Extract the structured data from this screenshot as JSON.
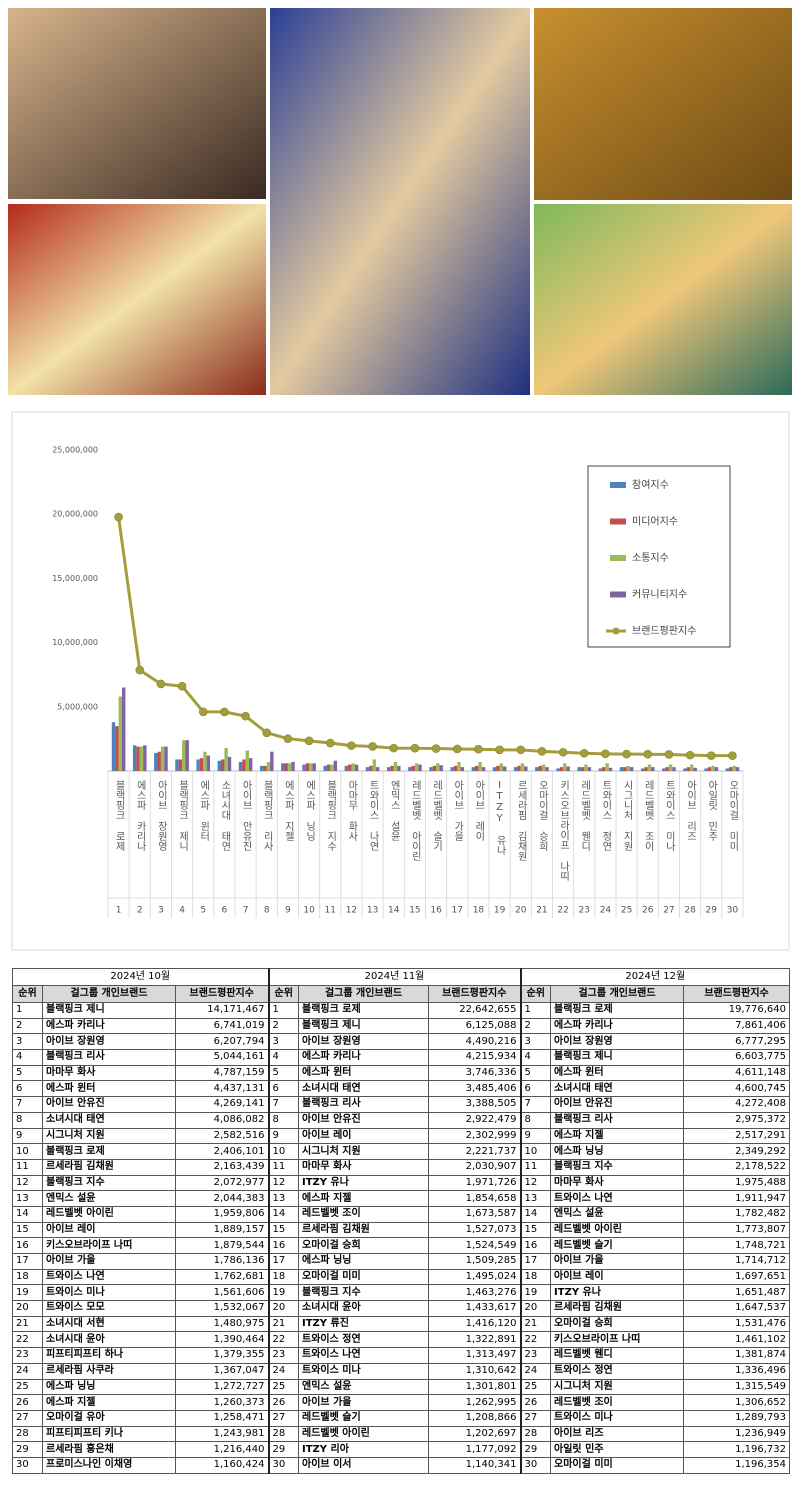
{
  "chart_data": {
    "type": "combo",
    "categories": [
      "블랙핑크 로제",
      "에스파 카리나",
      "아이브 장원영",
      "블랙핑크 제니",
      "에스파 윈터",
      "소녀시대 태연",
      "아이브 안유진",
      "블랙핑크 리사",
      "에스파 지젤",
      "에스파 닝닝",
      "블랙핑크 지수",
      "마마무 화사",
      "트와이스 나연",
      "엔믹스 설윤",
      "레드벨벳 아이린",
      "레드벨벳 슬기",
      "아이브 가을",
      "아이브 레이",
      "ITZY 유나",
      "르세라핌 김채원",
      "오마이걸 승희",
      "키스오브라이프 나띠",
      "레드벨벳 웬디",
      "트와이스 정연",
      "시그니처 지원",
      "레드벨벳 조이",
      "트와이스 미나",
      "아이브 리즈",
      "아일릿 민주",
      "오마이걸 미미"
    ],
    "ranks": [
      1,
      2,
      3,
      4,
      5,
      6,
      7,
      8,
      9,
      10,
      11,
      12,
      13,
      14,
      15,
      16,
      17,
      18,
      19,
      20,
      21,
      22,
      23,
      24,
      25,
      26,
      27,
      28,
      29,
      30
    ],
    "series": [
      {
        "name": "참여지수",
        "type": "bar",
        "color": "#4f81bd",
        "values": [
          3800000,
          2000000,
          1400000,
          900000,
          900000,
          800000,
          700000,
          400000,
          600000,
          500000,
          400000,
          400000,
          300000,
          300000,
          300000,
          300000,
          300000,
          300000,
          300000,
          300000,
          300000,
          200000,
          300000,
          200000,
          300000,
          200000,
          200000,
          200000,
          200000,
          200000
        ]
      },
      {
        "name": "미디어지수",
        "type": "bar",
        "color": "#c0504d",
        "values": [
          3500000,
          1900000,
          1500000,
          900000,
          1000000,
          900000,
          900000,
          400000,
          600000,
          600000,
          500000,
          500000,
          400000,
          400000,
          400000,
          400000,
          400000,
          400000,
          400000,
          400000,
          400000,
          300000,
          300000,
          300000,
          300000,
          300000,
          300000,
          300000,
          300000,
          300000
        ]
      },
      {
        "name": "소통지수",
        "type": "bar",
        "color": "#9bbb59",
        "values": [
          5800000,
          1900000,
          1900000,
          2400000,
          1500000,
          1800000,
          1600000,
          700000,
          600000,
          600000,
          500000,
          600000,
          900000,
          700000,
          600000,
          600000,
          700000,
          700000,
          600000,
          600000,
          500000,
          600000,
          500000,
          600000,
          400000,
          500000,
          500000,
          500000,
          400000,
          400000
        ]
      },
      {
        "name": "커뮤니티지수",
        "type": "bar",
        "color": "#8064a2",
        "values": [
          6500000,
          2000000,
          1900000,
          2400000,
          1200000,
          1100000,
          1000000,
          1500000,
          700000,
          600000,
          800000,
          500000,
          300000,
          400000,
          500000,
          450000,
          300000,
          300000,
          350000,
          350000,
          300000,
          350000,
          300000,
          250000,
          300000,
          300000,
          300000,
          250000,
          300000,
          300000
        ]
      },
      {
        "name": "브랜드평판지수",
        "type": "line",
        "color": "#a59d3c",
        "values": [
          19776640,
          7861406,
          6777295,
          6603775,
          4611148,
          4600745,
          4272408,
          2975372,
          2517291,
          2349292,
          2178522,
          1975488,
          1911947,
          1782482,
          1773807,
          1748721,
          1714712,
          1697651,
          1651487,
          1647537,
          1531476,
          1461102,
          1381874,
          1336496,
          1315549,
          1306652,
          1289793,
          1236949,
          1196732,
          1196354
        ]
      }
    ],
    "ylim": [
      0,
      25000000
    ],
    "yticks": [
      {
        "value": 5000000,
        "label": "5,000,000"
      },
      {
        "value": 10000000,
        "label": "10,000,000"
      },
      {
        "value": 15000000,
        "label": "15,000,000"
      },
      {
        "value": 20000000,
        "label": "20,000,000"
      },
      {
        "value": 25000000,
        "label": "25,000,000"
      }
    ],
    "grid": false,
    "legend": "upper-right"
  },
  "table": {
    "columns": [
      "순위",
      "걸그룹 개인브랜드",
      "브랜드평판지수"
    ],
    "months": [
      {
        "title": "2024년 10월",
        "rows": [
          [
            1,
            "블랙핑크 제니",
            "14,171,467"
          ],
          [
            2,
            "에스파 카리나",
            "6,741,019"
          ],
          [
            3,
            "아이브 장원영",
            "6,207,794"
          ],
          [
            4,
            "블랙핑크 리사",
            "5,044,161"
          ],
          [
            5,
            "마마무 화사",
            "4,787,159"
          ],
          [
            6,
            "에스파 윈터",
            "4,437,131"
          ],
          [
            7,
            "아이브 안유진",
            "4,269,141"
          ],
          [
            8,
            "소녀시대 태연",
            "4,086,082"
          ],
          [
            9,
            "시그니처 지원",
            "2,582,516"
          ],
          [
            10,
            "블랙핑크 로제",
            "2,406,101"
          ],
          [
            11,
            "르세라핌 김채원",
            "2,163,439"
          ],
          [
            12,
            "블랙핑크 지수",
            "2,072,977"
          ],
          [
            13,
            "엔믹스 설윤",
            "2,044,383"
          ],
          [
            14,
            "레드벨벳 아이린",
            "1,959,806"
          ],
          [
            15,
            "아이브 레이",
            "1,889,157"
          ],
          [
            16,
            "키스오브라이프 나띠",
            "1,879,544"
          ],
          [
            17,
            "아이브 가을",
            "1,786,136"
          ],
          [
            18,
            "트와이스 나연",
            "1,762,681"
          ],
          [
            19,
            "트와이스 미나",
            "1,561,606"
          ],
          [
            20,
            "트와이스 모모",
            "1,532,067"
          ],
          [
            21,
            "소녀시대 서현",
            "1,480,975"
          ],
          [
            22,
            "소녀시대 윤아",
            "1,390,464"
          ],
          [
            23,
            "피프티피프티 하나",
            "1,379,355"
          ],
          [
            24,
            "르세라핌 사쿠라",
            "1,367,047"
          ],
          [
            25,
            "에스파 닝닝",
            "1,272,727"
          ],
          [
            26,
            "에스파 지젤",
            "1,260,373"
          ],
          [
            27,
            "오마이걸 유아",
            "1,258,471"
          ],
          [
            28,
            "피프티피프티 키나",
            "1,243,981"
          ],
          [
            29,
            "르세라핌 홍은채",
            "1,216,440"
          ],
          [
            30,
            "프로미스나인 이채영",
            "1,160,424"
          ]
        ]
      },
      {
        "title": "2024년 11월",
        "rows": [
          [
            1,
            "블랙핑크 로제",
            "22,642,655"
          ],
          [
            2,
            "블랙핑크 제니",
            "6,125,088"
          ],
          [
            3,
            "아이브 장원영",
            "4,490,216"
          ],
          [
            4,
            "에스파 카리나",
            "4,215,934"
          ],
          [
            5,
            "에스파 윈터",
            "3,746,336"
          ],
          [
            6,
            "소녀시대 태연",
            "3,485,406"
          ],
          [
            7,
            "블랙핑크 리사",
            "3,388,505"
          ],
          [
            8,
            "아이브 안유진",
            "2,922,479"
          ],
          [
            9,
            "아이브 레이",
            "2,302,999"
          ],
          [
            10,
            "시그니처 지원",
            "2,221,737"
          ],
          [
            11,
            "마마무 화사",
            "2,030,907"
          ],
          [
            12,
            "ITZY 유나",
            "1,971,726"
          ],
          [
            13,
            "에스파 지젤",
            "1,854,658"
          ],
          [
            14,
            "레드벨벳 조이",
            "1,673,587"
          ],
          [
            15,
            "르세라핌 김채원",
            "1,527,073"
          ],
          [
            16,
            "오마이걸 승희",
            "1,524,549"
          ],
          [
            17,
            "에스파 닝닝",
            "1,509,285"
          ],
          [
            18,
            "오마이걸 미미",
            "1,495,024"
          ],
          [
            19,
            "블랙핑크 지수",
            "1,463,276"
          ],
          [
            20,
            "소녀시대 윤아",
            "1,433,617"
          ],
          [
            21,
            "ITZY 류진",
            "1,416,120"
          ],
          [
            22,
            "트와이스 정연",
            "1,322,891"
          ],
          [
            23,
            "트와이스 나연",
            "1,313,497"
          ],
          [
            24,
            "트와이스 미나",
            "1,310,642"
          ],
          [
            25,
            "엔믹스 설윤",
            "1,301,801"
          ],
          [
            26,
            "아이브 가을",
            "1,262,995"
          ],
          [
            27,
            "레드벨벳 슬기",
            "1,208,866"
          ],
          [
            28,
            "레드벨벳 아이린",
            "1,202,697"
          ],
          [
            29,
            "ITZY 리아",
            "1,177,092"
          ],
          [
            30,
            "아이브 이서",
            "1,140,341"
          ]
        ]
      },
      {
        "title": "2024년 12월",
        "rows": [
          [
            1,
            "블랙핑크 로제",
            "19,776,640"
          ],
          [
            2,
            "에스파 카리나",
            "7,861,406"
          ],
          [
            3,
            "아이브 장원영",
            "6,777,295"
          ],
          [
            4,
            "블랙핑크 제니",
            "6,603,775"
          ],
          [
            5,
            "에스파 윈터",
            "4,611,148"
          ],
          [
            6,
            "소녀시대 태연",
            "4,600,745"
          ],
          [
            7,
            "아이브 안유진",
            "4,272,408"
          ],
          [
            8,
            "블랙핑크 리사",
            "2,975,372"
          ],
          [
            9,
            "에스파 지젤",
            "2,517,291"
          ],
          [
            10,
            "에스파 닝닝",
            "2,349,292"
          ],
          [
            11,
            "블랙핑크 지수",
            "2,178,522"
          ],
          [
            12,
            "마마무 화사",
            "1,975,488"
          ],
          [
            13,
            "트와이스 나연",
            "1,911,947"
          ],
          [
            14,
            "엔믹스 설윤",
            "1,782,482"
          ],
          [
            15,
            "레드벨벳 아이린",
            "1,773,807"
          ],
          [
            16,
            "레드벨벳 슬기",
            "1,748,721"
          ],
          [
            17,
            "아이브 가을",
            "1,714,712"
          ],
          [
            18,
            "아이브 레이",
            "1,697,651"
          ],
          [
            19,
            "ITZY 유나",
            "1,651,487"
          ],
          [
            20,
            "르세라핌 김채원",
            "1,647,537"
          ],
          [
            21,
            "오마이걸 승희",
            "1,531,476"
          ],
          [
            22,
            "키스오브라이프 나띠",
            "1,461,102"
          ],
          [
            23,
            "레드벨벳 웬디",
            "1,381,874"
          ],
          [
            24,
            "트와이스 정연",
            "1,336,496"
          ],
          [
            25,
            "시그니처 지원",
            "1,315,549"
          ],
          [
            26,
            "레드벨벳 조이",
            "1,306,652"
          ],
          [
            27,
            "트와이스 미나",
            "1,289,793"
          ],
          [
            28,
            "아이브 리즈",
            "1,236,949"
          ],
          [
            29,
            "아일릿 민주",
            "1,196,732"
          ],
          [
            30,
            "오마이걸 미미",
            "1,196,354"
          ]
        ]
      }
    ]
  }
}
